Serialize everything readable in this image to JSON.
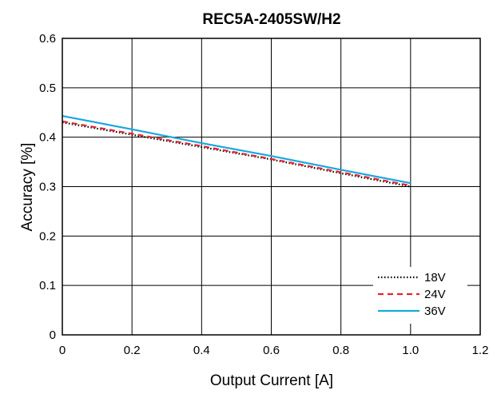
{
  "chart_data": {
    "type": "line",
    "title": "REC5A-2405SW/H2",
    "xlabel": "Output Current [A]",
    "ylabel": "Accuracy [%]",
    "xlim": [
      0,
      1.2
    ],
    "ylim": [
      0,
      0.6
    ],
    "xticks": [
      "0",
      "0.2",
      "0.4",
      "0.6",
      "0.8",
      "1.0",
      "1.2"
    ],
    "yticks": [
      "0",
      "0.1",
      "0.2",
      "0.3",
      "0.4",
      "0.5",
      "0.6"
    ],
    "grid": true,
    "legend_position": "bottom-right",
    "series": [
      {
        "name": "18V",
        "color": "#000000",
        "style": "dotted",
        "x": [
          0,
          0.2,
          0.4,
          0.6,
          0.8,
          1.0
        ],
        "y": [
          0.43,
          0.405,
          0.38,
          0.355,
          0.327,
          0.3
        ]
      },
      {
        "name": "24V",
        "color": "#e0262f",
        "style": "dashed",
        "x": [
          0,
          0.2,
          0.4,
          0.6,
          0.8,
          1.0
        ],
        "y": [
          0.432,
          0.407,
          0.382,
          0.356,
          0.329,
          0.302
        ]
      },
      {
        "name": "36V",
        "color": "#1aa7df",
        "style": "solid",
        "x": [
          0,
          0.2,
          0.4,
          0.6,
          0.8,
          1.0
        ],
        "y": [
          0.443,
          0.416,
          0.388,
          0.362,
          0.334,
          0.307
        ]
      }
    ]
  }
}
